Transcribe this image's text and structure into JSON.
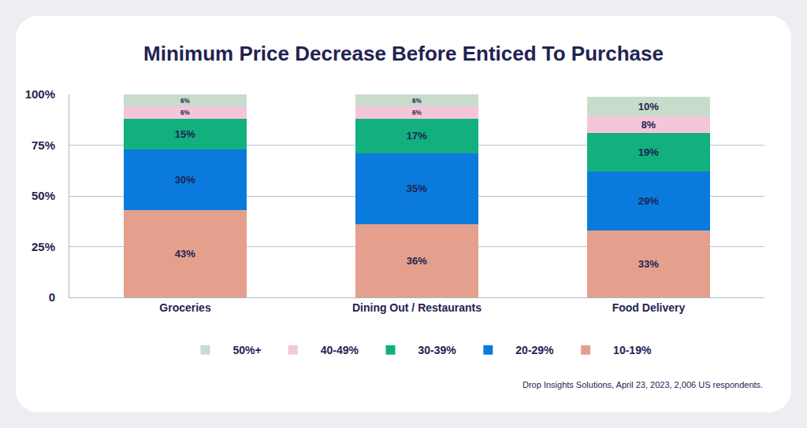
{
  "chart_data": {
    "type": "bar",
    "title": "Minimum Price Decrease Before Enticed To Purchase",
    "categories": [
      "Groceries",
      "Dining Out / Restaurants",
      "Food Delivery"
    ],
    "series": [
      {
        "name": "10-19%",
        "color": "#e4a08c",
        "values": [
          43,
          36,
          33
        ],
        "value_labels": [
          "43%",
          "36%",
          "33%"
        ]
      },
      {
        "name": "20-29%",
        "color": "#0a7bdc",
        "values": [
          30,
          35,
          29
        ],
        "value_labels": [
          "30%",
          "35%",
          "29%"
        ]
      },
      {
        "name": "30-39%",
        "color": "#12b07f",
        "values": [
          15,
          17,
          19
        ],
        "value_labels": [
          "15%",
          "17%",
          "19%"
        ]
      },
      {
        "name": "40-49%",
        "color": "#f5c6da",
        "values": [
          6,
          6,
          8
        ],
        "value_labels": [
          "6%",
          "6%",
          "8%"
        ]
      },
      {
        "name": "50%+",
        "color": "#c8dccb",
        "values": [
          6,
          6,
          10
        ],
        "value_labels": [
          "6%",
          "6%",
          "10%"
        ]
      }
    ],
    "ylim": [
      0,
      100
    ],
    "yticks": [
      0,
      {
        "value": 25,
        "label": "25%"
      },
      {
        "value": 50,
        "label": "50%"
      },
      {
        "value": 75,
        "label": "75%"
      },
      {
        "value": 100,
        "label": "100%"
      }
    ],
    "stacked": true,
    "data_labels": true,
    "grid": true,
    "legend": "bottom",
    "annotations": [
      "Drop Insights Solutions, April 23, 2023, 2,006 US respondents."
    ]
  }
}
